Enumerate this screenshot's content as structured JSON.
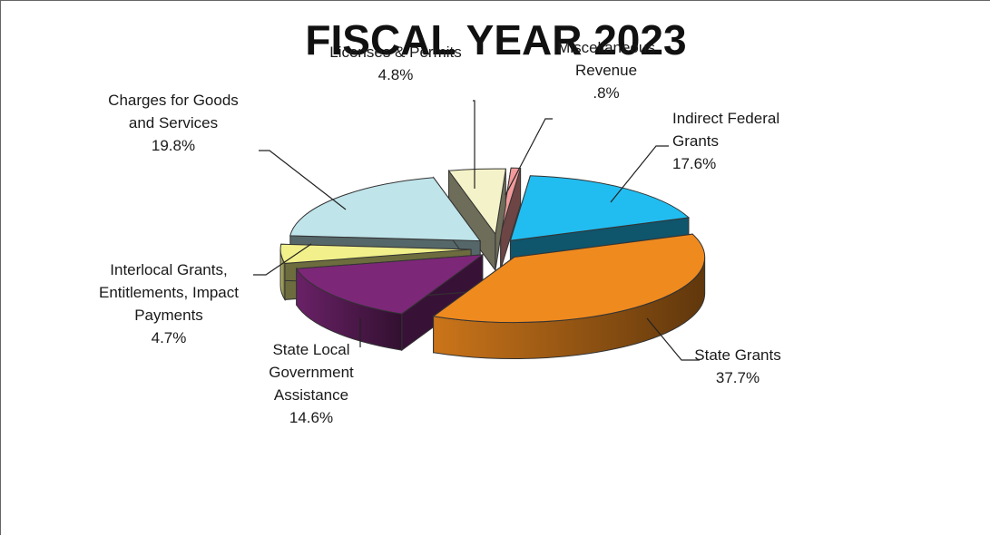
{
  "chart_data": {
    "type": "pie",
    "three_d": true,
    "exploded": true,
    "title": "FISCAL YEAR 2023",
    "slices": [
      {
        "name": "Indirect Federal Grants",
        "value": 17.6,
        "label_lines": [
          "Indirect Federal",
          "Grants",
          "17.6%"
        ],
        "color": "#22bdf0"
      },
      {
        "name": "State Grants",
        "value": 37.7,
        "label_lines": [
          "State Grants",
          "37.7%"
        ],
        "color": "#ef8a1f"
      },
      {
        "name": "State Local Government Assistance",
        "value": 14.6,
        "label_lines": [
          "State Local",
          "Government",
          "Assistance",
          "14.6%"
        ],
        "color": "#7d2779"
      },
      {
        "name": "Interlocal Grants, Entitlements, Impact Payments",
        "value": 4.7,
        "label_lines": [
          "Interlocal Grants,",
          "Entitlements, Impact",
          "Payments",
          "4.7%"
        ],
        "color": "#f1f08a"
      },
      {
        "name": "Charges for Goods and Services",
        "value": 19.8,
        "label_lines": [
          "Charges for Goods",
          "and Services",
          "19.8%"
        ],
        "color": "#bfe4ea"
      },
      {
        "name": "Licenses & Permits",
        "value": 4.8,
        "label_lines": [
          "Licenses & Permits",
          "4.8%"
        ],
        "color": "#f4f2c8"
      },
      {
        "name": "Miscellaneous Revenue",
        "value": 0.8,
        "label_lines": [
          "Miscellaneous",
          "Revenue",
          ".8%"
        ],
        "color": "#f29a9a"
      }
    ]
  }
}
